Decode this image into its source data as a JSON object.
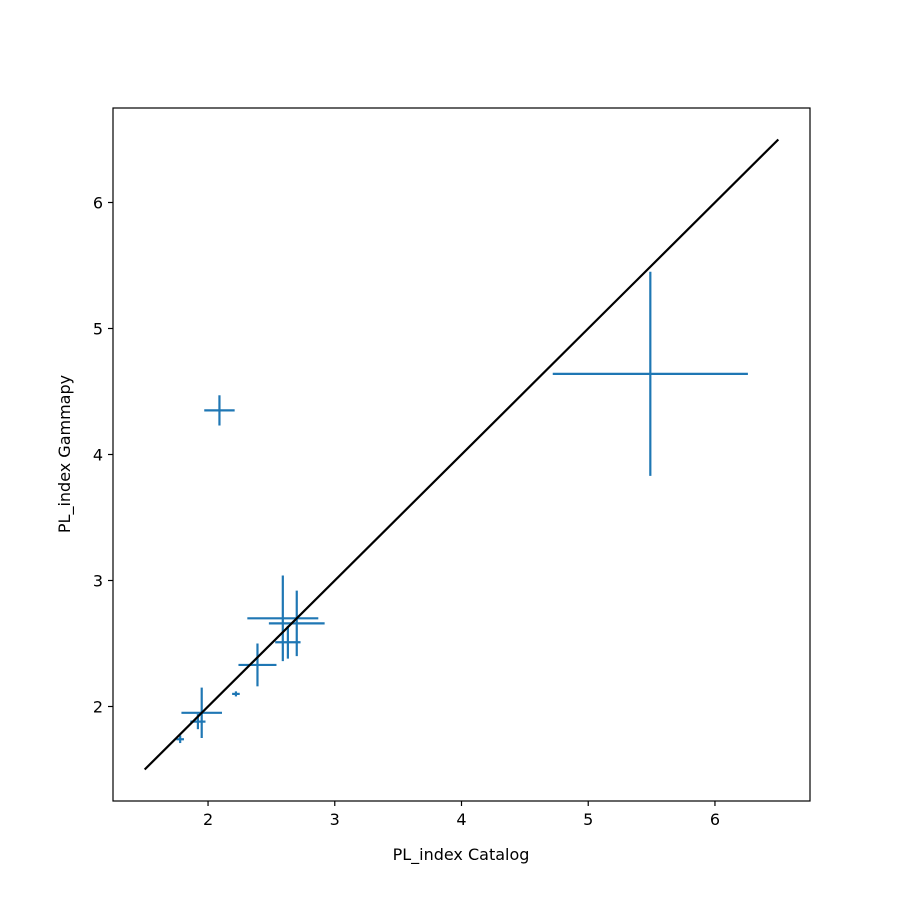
{
  "chart_data": {
    "type": "scatter",
    "title": "",
    "xlabel": "PL_index Catalog",
    "ylabel": "PL_index Gammapy",
    "xlim": [
      1.25,
      6.75
    ],
    "ylim": [
      1.25,
      6.75
    ],
    "xticks": [
      2,
      3,
      4,
      5,
      6
    ],
    "yticks": [
      2,
      3,
      4,
      5,
      6
    ],
    "grid": false,
    "legend": "none",
    "series": [
      {
        "kind": "errorbar",
        "color": "#1f77b4",
        "points": [
          {
            "x": 1.78,
            "y": 1.74,
            "xerr": 0.03,
            "yerr": 0.03
          },
          {
            "x": 1.92,
            "y": 1.88,
            "xerr": 0.06,
            "yerr": 0.06
          },
          {
            "x": 1.95,
            "y": 1.95,
            "xerr": 0.16,
            "yerr": 0.2
          },
          {
            "x": 2.09,
            "y": 4.35,
            "xerr": 0.12,
            "yerr": 0.12
          },
          {
            "x": 2.22,
            "y": 2.1,
            "xerr": 0.03,
            "yerr": 0.02
          },
          {
            "x": 2.39,
            "y": 2.33,
            "xerr": 0.15,
            "yerr": 0.17
          },
          {
            "x": 2.59,
            "y": 2.7,
            "xerr": 0.28,
            "yerr": 0.34
          },
          {
            "x": 2.63,
            "y": 2.51,
            "xerr": 0.1,
            "yerr": 0.13
          },
          {
            "x": 2.7,
            "y": 2.66,
            "xerr": 0.22,
            "yerr": 0.26
          },
          {
            "x": 5.49,
            "y": 4.64,
            "xerr": 0.77,
            "yerr": 0.81
          }
        ]
      },
      {
        "kind": "line",
        "color": "#000000",
        "x": [
          1.5,
          6.5
        ],
        "y": [
          1.5,
          6.5
        ]
      }
    ]
  }
}
